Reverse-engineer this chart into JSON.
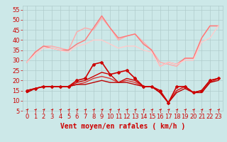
{
  "title": "",
  "xlabel": "Vent moyen/en rafales ( km/h )",
  "background_color": "#cce8e8",
  "grid_color": "#b0cccc",
  "xlim": [
    -0.5,
    23.5
  ],
  "ylim": [
    5,
    57
  ],
  "yticks": [
    5,
    10,
    15,
    20,
    25,
    30,
    35,
    40,
    45,
    50,
    55
  ],
  "xticks": [
    0,
    1,
    2,
    3,
    4,
    5,
    6,
    7,
    8,
    9,
    10,
    11,
    12,
    13,
    14,
    15,
    16,
    17,
    18,
    19,
    20,
    21,
    22,
    23
  ],
  "series": [
    {
      "x": [
        0,
        1,
        2,
        3,
        4,
        5,
        6,
        7,
        8,
        9,
        10,
        11,
        12,
        13,
        14,
        15,
        16,
        17,
        18,
        19,
        20,
        21,
        22,
        23
      ],
      "y": [
        29,
        34,
        37,
        37,
        36,
        35,
        44,
        46,
        45,
        51,
        46,
        40,
        42,
        43,
        39,
        35,
        29,
        28,
        27,
        31,
        31,
        41,
        47,
        47
      ],
      "color": "#ffaaaa",
      "linewidth": 1.0,
      "marker": null,
      "zorder": 2
    },
    {
      "x": [
        0,
        1,
        2,
        3,
        4,
        5,
        6,
        7,
        8,
        9,
        10,
        11,
        12,
        13,
        14,
        15,
        16,
        17,
        18,
        19,
        20,
        21,
        22,
        23
      ],
      "y": [
        29,
        34,
        37,
        36,
        35,
        35,
        38,
        40,
        46,
        52,
        46,
        41,
        42,
        43,
        38,
        35,
        27,
        29,
        28,
        31,
        31,
        41,
        47,
        47
      ],
      "color": "#ff7777",
      "linewidth": 1.0,
      "marker": null,
      "zorder": 2
    },
    {
      "x": [
        0,
        1,
        2,
        3,
        4,
        5,
        6,
        7,
        8,
        9,
        10,
        11,
        12,
        13,
        14,
        15,
        16,
        17,
        18,
        19,
        20,
        21,
        22,
        23
      ],
      "y": [
        29,
        33,
        36,
        36,
        35,
        34,
        37,
        38,
        40,
        40,
        38,
        36,
        37,
        37,
        35,
        34,
        27,
        29,
        28,
        30,
        30,
        39,
        41,
        47
      ],
      "color": "#ffcccc",
      "linewidth": 1.0,
      "marker": null,
      "zorder": 2
    },
    {
      "x": [
        0,
        1,
        2,
        3,
        4,
        5,
        6,
        7,
        8,
        9,
        10,
        11,
        12,
        13,
        14,
        15,
        16,
        17,
        18,
        19,
        20,
        21,
        22,
        23
      ],
      "y": [
        15,
        16,
        17,
        17,
        17,
        17,
        20,
        21,
        28,
        29,
        23,
        24,
        25,
        21,
        17,
        17,
        15,
        9,
        17,
        17,
        14,
        15,
        20,
        21
      ],
      "color": "#cc0000",
      "linewidth": 1.2,
      "marker": "D",
      "markersize": 2,
      "zorder": 4
    },
    {
      "x": [
        0,
        1,
        2,
        3,
        4,
        5,
        6,
        7,
        8,
        9,
        10,
        11,
        12,
        13,
        14,
        15,
        16,
        17,
        18,
        19,
        20,
        21,
        22,
        23
      ],
      "y": [
        15,
        16,
        17,
        17,
        17,
        17,
        19,
        20,
        22,
        24,
        23,
        19,
        21,
        20,
        17,
        17,
        14,
        9,
        15,
        17,
        14,
        15,
        20,
        21
      ],
      "color": "#cc0000",
      "linewidth": 1.0,
      "marker": null,
      "zorder": 3
    },
    {
      "x": [
        0,
        1,
        2,
        3,
        4,
        5,
        6,
        7,
        8,
        9,
        10,
        11,
        12,
        13,
        14,
        15,
        16,
        17,
        18,
        19,
        20,
        21,
        22,
        23
      ],
      "y": [
        15,
        16,
        17,
        17,
        17,
        17,
        18,
        19,
        21,
        22,
        21,
        19,
        20,
        19,
        17,
        17,
        14,
        9,
        15,
        17,
        14,
        14,
        19,
        21
      ],
      "color": "#dd3333",
      "linewidth": 1.0,
      "marker": null,
      "zorder": 3
    },
    {
      "x": [
        0,
        1,
        2,
        3,
        4,
        5,
        6,
        7,
        8,
        9,
        10,
        11,
        12,
        13,
        14,
        15,
        16,
        17,
        18,
        19,
        20,
        21,
        22,
        23
      ],
      "y": [
        14,
        16,
        17,
        17,
        17,
        17,
        18,
        18,
        19,
        20,
        19,
        19,
        19,
        18,
        17,
        17,
        14,
        9,
        14,
        16,
        14,
        14,
        19,
        20
      ],
      "color": "#bb0000",
      "linewidth": 1.0,
      "marker": null,
      "zorder": 3
    }
  ],
  "arrow_color": "#cc0000",
  "xlabel_color": "#cc0000",
  "xlabel_fontsize": 7,
  "tick_fontsize": 6,
  "ytick_fontsize": 6,
  "tick_color": "#cc0000"
}
